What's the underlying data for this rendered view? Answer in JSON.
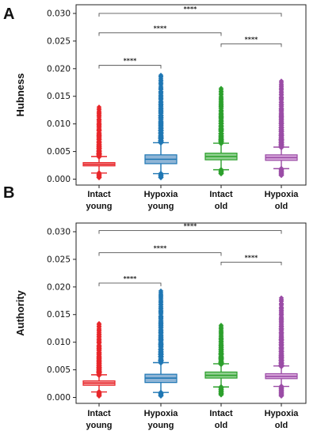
{
  "chart_data": [
    {
      "panel": "A",
      "type": "box",
      "ylabel": "Hubness",
      "categories": [
        [
          "Intact",
          "young"
        ],
        [
          "Hypoxia",
          "young"
        ],
        [
          "Intact",
          "old"
        ],
        [
          "Hypoxia",
          "old"
        ]
      ],
      "colors": [
        "#e8262a",
        "#1f77b4",
        "#2ca02c",
        "#9b4ca6"
      ],
      "box_colors": [
        "#f4a3a4",
        "#8fb5d6",
        "#8fcf8f",
        "#d6a6da"
      ],
      "ylim": [
        -0.0005,
        0.031
      ],
      "yticks": [
        0.0,
        0.005,
        0.01,
        0.015,
        0.02,
        0.025,
        0.03
      ],
      "ytick_labels": [
        "0.000",
        "0.005",
        "0.010",
        "0.015",
        "0.020",
        "0.025",
        "0.030"
      ],
      "boxes": [
        {
          "q1": 0.0024,
          "median": 0.0027,
          "q3": 0.003,
          "whisker_low": 0.0011,
          "whisker_high": 0.0041,
          "outlier_min": 0.0003,
          "outlier_max": 0.013
        },
        {
          "q1": 0.0028,
          "median": 0.0036,
          "q3": 0.0044,
          "whisker_low": 0.001,
          "whisker_high": 0.0066,
          "outlier_min": 0.0003,
          "outlier_max": 0.0189
        },
        {
          "q1": 0.0035,
          "median": 0.0041,
          "q3": 0.0047,
          "whisker_low": 0.0017,
          "whisker_high": 0.0065,
          "outlier_min": 0.001,
          "outlier_max": 0.0164
        },
        {
          "q1": 0.0034,
          "median": 0.0039,
          "q3": 0.0044,
          "whisker_low": 0.0019,
          "whisker_high": 0.0058,
          "outlier_min": 0.0007,
          "outlier_max": 0.0177
        }
      ],
      "significance": [
        {
          "from": 0,
          "to": 1,
          "y": 0.0206,
          "label": "****"
        },
        {
          "from": 0,
          "to": 2,
          "y": 0.0265,
          "label": "****"
        },
        {
          "from": 2,
          "to": 3,
          "y": 0.0245,
          "label": "****"
        },
        {
          "from": 0,
          "to": 3,
          "y": 0.03,
          "label": "****"
        }
      ]
    },
    {
      "panel": "B",
      "type": "box",
      "ylabel": "Authority",
      "categories": [
        [
          "Intact",
          "young"
        ],
        [
          "Hypoxia",
          "young"
        ],
        [
          "Intact",
          "old"
        ],
        [
          "Hypoxia",
          "old"
        ]
      ],
      "colors": [
        "#e8262a",
        "#1f77b4",
        "#2ca02c",
        "#9b4ca6"
      ],
      "box_colors": [
        "#f4a3a4",
        "#8fb5d6",
        "#8fcf8f",
        "#d6a6da"
      ],
      "ylim": [
        -0.0005,
        0.031
      ],
      "yticks": [
        0.0,
        0.005,
        0.01,
        0.015,
        0.02,
        0.025,
        0.03
      ],
      "ytick_labels": [
        "0.000",
        "0.005",
        "0.010",
        "0.015",
        "0.020",
        "0.025",
        "0.030"
      ],
      "boxes": [
        {
          "q1": 0.0022,
          "median": 0.0026,
          "q3": 0.003,
          "whisker_low": 0.001,
          "whisker_high": 0.0041,
          "outlier_min": 0.0003,
          "outlier_max": 0.0134
        },
        {
          "q1": 0.0027,
          "median": 0.0035,
          "q3": 0.0042,
          "whisker_low": 0.0009,
          "whisker_high": 0.0063,
          "outlier_min": 0.0003,
          "outlier_max": 0.0192
        },
        {
          "q1": 0.0035,
          "median": 0.004,
          "q3": 0.0046,
          "whisker_low": 0.0019,
          "whisker_high": 0.0061,
          "outlier_min": 0.0005,
          "outlier_max": 0.0131
        },
        {
          "q1": 0.0034,
          "median": 0.0038,
          "q3": 0.0043,
          "whisker_low": 0.002,
          "whisker_high": 0.0057,
          "outlier_min": 0.0003,
          "outlier_max": 0.018
        }
      ],
      "significance": [
        {
          "from": 0,
          "to": 1,
          "y": 0.0207,
          "label": "****"
        },
        {
          "from": 0,
          "to": 2,
          "y": 0.0262,
          "label": "****"
        },
        {
          "from": 2,
          "to": 3,
          "y": 0.0245,
          "label": "****"
        },
        {
          "from": 0,
          "to": 3,
          "y": 0.0302,
          "label": "****"
        }
      ]
    }
  ]
}
